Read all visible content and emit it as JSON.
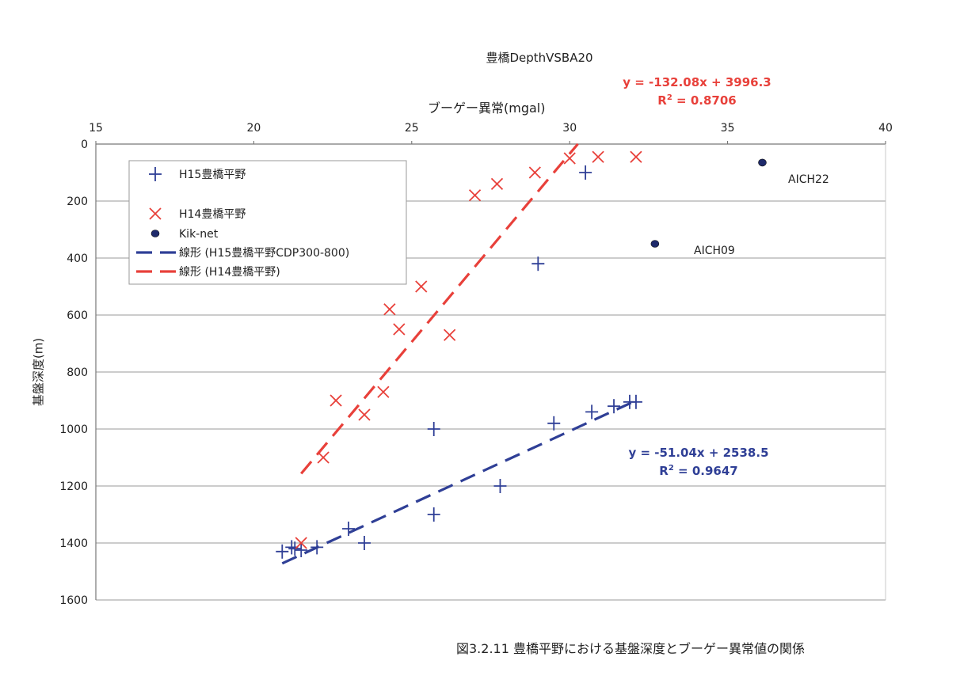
{
  "chart_data": {
    "type": "scatter",
    "title": "豊橋DepthVSBA20",
    "xlabel": "ブーゲー異常(mgal)",
    "ylabel": "基盤深度(m)",
    "xlim": [
      15,
      40
    ],
    "ylim": [
      0,
      1600
    ],
    "y_inverted": true,
    "x_axis_position": "top",
    "x_ticks": [
      "15",
      "20",
      "25",
      "30",
      "35",
      "40"
    ],
    "y_ticks": [
      "0",
      "200",
      "400",
      "600",
      "800",
      "1000",
      "1200",
      "1400",
      "1600"
    ],
    "grid": "horizontal",
    "legend_position": "top-left",
    "series": [
      {
        "name": "H15豊橋平野",
        "marker": "plus",
        "color": "#2f3f96",
        "points": [
          [
            30.5,
            100
          ],
          [
            29.0,
            420
          ],
          [
            25.7,
            1000
          ],
          [
            29.5,
            980
          ],
          [
            30.7,
            940
          ],
          [
            31.4,
            920
          ],
          [
            31.9,
            905
          ],
          [
            32.1,
            905
          ],
          [
            27.8,
            1200
          ],
          [
            25.7,
            1300
          ],
          [
            23.5,
            1400
          ],
          [
            23.0,
            1350
          ],
          [
            21.3,
            1420
          ],
          [
            21.2,
            1415
          ],
          [
            20.9,
            1430
          ],
          [
            21.5,
            1425
          ],
          [
            22.0,
            1415
          ]
        ]
      },
      {
        "name": "H14豊橋平野",
        "marker": "x",
        "color": "#e8403a",
        "points": [
          [
            30.0,
            50
          ],
          [
            30.9,
            45
          ],
          [
            32.1,
            45
          ],
          [
            28.9,
            100
          ],
          [
            27.7,
            140
          ],
          [
            27.0,
            180
          ],
          [
            25.3,
            500
          ],
          [
            24.3,
            580
          ],
          [
            24.6,
            650
          ],
          [
            26.2,
            670
          ],
          [
            24.1,
            870
          ],
          [
            22.6,
            900
          ],
          [
            23.5,
            950
          ],
          [
            22.2,
            1100
          ],
          [
            21.5,
            1400
          ]
        ]
      },
      {
        "name": "Kik-net",
        "marker": "dot",
        "color": "#1e2a6b",
        "points": [
          [
            36.1,
            65
          ],
          [
            32.7,
            350
          ]
        ]
      },
      {
        "name": "線形 (H15豊橋平野CDP300-800)",
        "type": "trendline",
        "color": "#2f3f96",
        "slope": -51.04,
        "intercept": 2538.5,
        "x_range": [
          20.9,
          32.0
        ]
      },
      {
        "name": "線形 (H14豊橋平野)",
        "type": "trendline",
        "color": "#e8403a",
        "slope": -132.08,
        "intercept": 3996.3,
        "x_range": [
          21.5,
          30.26
        ]
      }
    ],
    "annotations": {
      "station_1": "AICH22",
      "station_2": "AICH09",
      "eq_red_line1": "y = -132.08x + 3996.3",
      "eq_red_r2_prefix": "R",
      "eq_red_r2_value": " = 0.8706",
      "eq_blue_line1": "y = -51.04x + 2538.5",
      "eq_blue_r2_prefix": "R",
      "eq_blue_r2_value": " = 0.9647",
      "r2_superscript": "2"
    },
    "caption": "図3.2.11 豊橋平野における基盤深度とブーゲー異常値の関係"
  }
}
